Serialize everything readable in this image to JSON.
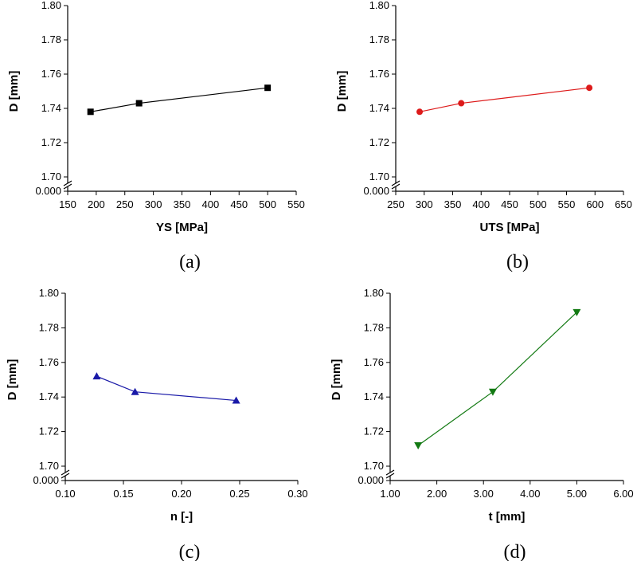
{
  "chart_data": [
    {
      "type": "line",
      "panel_label": "(a)",
      "xlabel": "YS [MPa]",
      "ylabel": "D [mm]",
      "xlim": [
        150,
        550
      ],
      "xticks": [
        "150",
        "200",
        "250",
        "300",
        "350",
        "400",
        "450",
        "500",
        "550"
      ],
      "ylim": [
        1.7,
        1.8
      ],
      "yticks": [
        "1.70",
        "1.72",
        "1.74",
        "1.76",
        "1.78",
        "1.80"
      ],
      "y_break_label": "0.000",
      "marker": "square",
      "color": "#000000",
      "series": [
        {
          "x": [
            190,
            275,
            500
          ],
          "y": [
            1.738,
            1.743,
            1.752
          ]
        }
      ]
    },
    {
      "type": "line",
      "panel_label": "(b)",
      "xlabel": "UTS [MPa]",
      "ylabel": "D [mm]",
      "xlim": [
        250,
        650
      ],
      "xticks": [
        "250",
        "300",
        "350",
        "400",
        "450",
        "500",
        "550",
        "600",
        "650"
      ],
      "ylim": [
        1.7,
        1.8
      ],
      "yticks": [
        "1.70",
        "1.72",
        "1.74",
        "1.76",
        "1.78",
        "1.80"
      ],
      "y_break_label": "0.000",
      "marker": "circle",
      "color": "#dd1a1a",
      "series": [
        {
          "x": [
            292,
            365,
            590
          ],
          "y": [
            1.738,
            1.743,
            1.752
          ]
        }
      ]
    },
    {
      "type": "line",
      "panel_label": "(c)",
      "xlabel": "n [-]",
      "ylabel": "D [mm]",
      "xlim": [
        0.1,
        0.3
      ],
      "xticks": [
        "0.10",
        "0.15",
        "0.20",
        "0.25",
        "0.30"
      ],
      "ylim": [
        1.7,
        1.8
      ],
      "yticks": [
        "1.70",
        "1.72",
        "1.74",
        "1.76",
        "1.78",
        "1.80"
      ],
      "y_break_label": "0.000",
      "marker": "triangle-up",
      "color": "#1a1aa8",
      "series": [
        {
          "x": [
            0.127,
            0.16,
            0.247
          ],
          "y": [
            1.752,
            1.743,
            1.738
          ]
        }
      ]
    },
    {
      "type": "line",
      "panel_label": "(d)",
      "xlabel": "t [mm]",
      "ylabel": "D [mm]",
      "xlim": [
        1.0,
        6.0
      ],
      "xticks": [
        "1.00",
        "2.00",
        "3.00",
        "4.00",
        "5.00",
        "6.00"
      ],
      "ylim": [
        1.7,
        1.8
      ],
      "yticks": [
        "1.70",
        "1.72",
        "1.74",
        "1.76",
        "1.78",
        "1.80"
      ],
      "y_break_label": "0.000",
      "marker": "triangle-down",
      "color": "#137a13",
      "series": [
        {
          "x": [
            1.6,
            3.2,
            5.0
          ],
          "y": [
            1.712,
            1.743,
            1.789
          ]
        }
      ]
    }
  ]
}
